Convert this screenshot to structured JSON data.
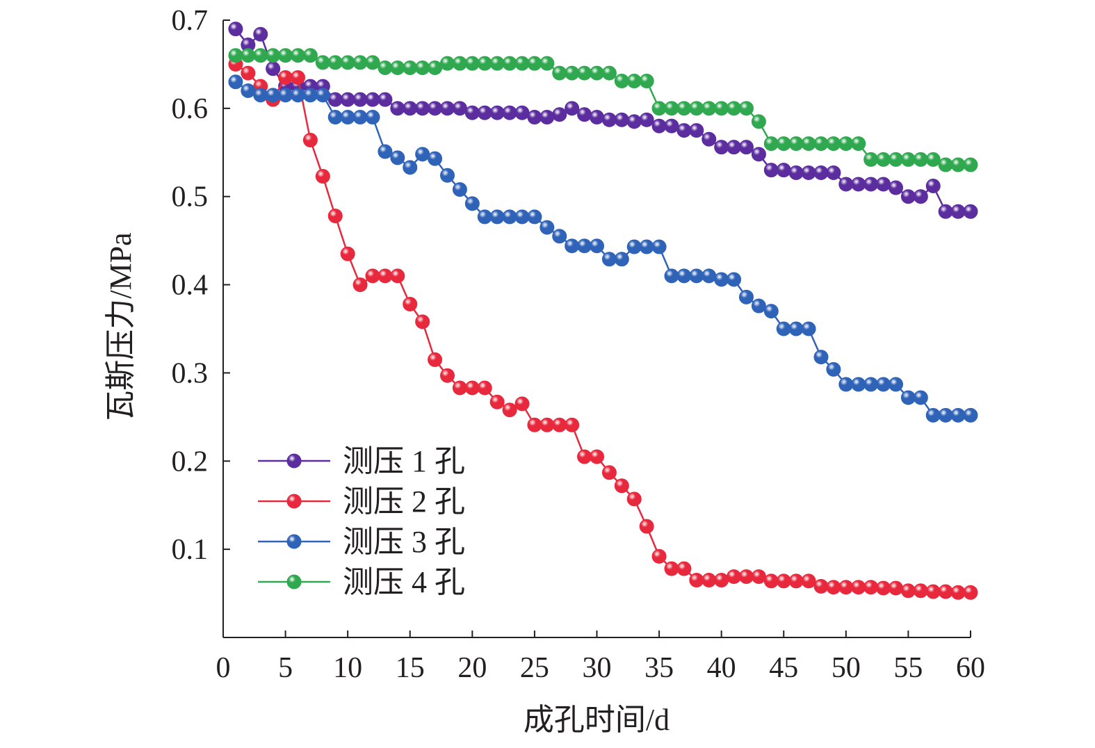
{
  "chart_data": {
    "type": "line",
    "xlabel": "成孔时间/d",
    "ylabel": "瓦斯压力/MPa",
    "xlim": [
      0,
      60
    ],
    "ylim": [
      0,
      0.7
    ],
    "x_ticks": [
      "0",
      "5",
      "10",
      "15",
      "20",
      "25",
      "30",
      "35",
      "40",
      "45",
      "50",
      "55",
      "60"
    ],
    "y_ticks": [
      "0.1",
      "0.2",
      "0.3",
      "0.4",
      "0.5",
      "0.6",
      "0.7"
    ],
    "grid": false,
    "legend_position": "lower-left",
    "x": [
      1,
      2,
      3,
      4,
      5,
      6,
      7,
      8,
      9,
      10,
      11,
      12,
      13,
      14,
      15,
      16,
      17,
      18,
      19,
      20,
      21,
      22,
      23,
      24,
      25,
      26,
      27,
      28,
      29,
      30,
      31,
      32,
      33,
      34,
      35,
      36,
      37,
      38,
      39,
      40,
      41,
      42,
      43,
      44,
      45,
      46,
      47,
      48,
      49,
      50,
      51,
      52,
      53,
      54,
      55,
      56,
      57,
      58,
      59,
      60
    ],
    "series": [
      {
        "name": "测压 1 孔",
        "color": "#5b2d9e",
        "values": [
          0.69,
          0.672,
          0.684,
          0.645,
          0.625,
          0.625,
          0.625,
          0.625,
          0.61,
          0.61,
          0.61,
          0.61,
          0.61,
          0.6,
          0.6,
          0.6,
          0.6,
          0.6,
          0.6,
          0.595,
          0.595,
          0.595,
          0.595,
          0.595,
          0.59,
          0.59,
          0.593,
          0.6,
          0.593,
          0.59,
          0.587,
          0.587,
          0.585,
          0.587,
          0.58,
          0.58,
          0.575,
          0.575,
          0.565,
          0.556,
          0.556,
          0.556,
          0.548,
          0.53,
          0.53,
          0.527,
          0.527,
          0.527,
          0.527,
          0.514,
          0.514,
          0.514,
          0.514,
          0.51,
          0.5,
          0.5,
          0.512,
          0.483,
          0.483,
          0.483
        ]
      },
      {
        "name": "测压 2 孔",
        "color": "#e8283c",
        "values": [
          0.65,
          0.64,
          0.625,
          0.61,
          0.635,
          0.635,
          0.564,
          0.523,
          0.478,
          0.435,
          0.4,
          0.41,
          0.41,
          0.41,
          0.378,
          0.358,
          0.315,
          0.297,
          0.283,
          0.283,
          0.283,
          0.267,
          0.258,
          0.265,
          0.241,
          0.241,
          0.241,
          0.241,
          0.205,
          0.205,
          0.187,
          0.172,
          0.157,
          0.126,
          0.092,
          0.078,
          0.078,
          0.065,
          0.065,
          0.065,
          0.069,
          0.069,
          0.069,
          0.064,
          0.064,
          0.064,
          0.064,
          0.058,
          0.057,
          0.057,
          0.057,
          0.057,
          0.056,
          0.056,
          0.053,
          0.053,
          0.052,
          0.052,
          0.051,
          0.051
        ]
      },
      {
        "name": "测压 3 孔",
        "color": "#2f63b8",
        "values": [
          0.63,
          0.62,
          0.615,
          0.615,
          0.615,
          0.615,
          0.615,
          0.615,
          0.59,
          0.59,
          0.59,
          0.59,
          0.551,
          0.544,
          0.533,
          0.548,
          0.543,
          0.524,
          0.508,
          0.492,
          0.477,
          0.477,
          0.477,
          0.477,
          0.477,
          0.465,
          0.455,
          0.444,
          0.444,
          0.444,
          0.429,
          0.429,
          0.443,
          0.443,
          0.443,
          0.41,
          0.41,
          0.41,
          0.41,
          0.406,
          0.406,
          0.386,
          0.376,
          0.37,
          0.35,
          0.35,
          0.35,
          0.318,
          0.304,
          0.287,
          0.287,
          0.287,
          0.287,
          0.287,
          0.272,
          0.272,
          0.252,
          0.252,
          0.252,
          0.252
        ]
      },
      {
        "name": "测压 4 孔",
        "color": "#2fa84f",
        "values": [
          0.66,
          0.66,
          0.66,
          0.66,
          0.66,
          0.66,
          0.66,
          0.652,
          0.652,
          0.652,
          0.652,
          0.652,
          0.646,
          0.646,
          0.646,
          0.646,
          0.646,
          0.651,
          0.651,
          0.651,
          0.651,
          0.651,
          0.651,
          0.651,
          0.651,
          0.651,
          0.64,
          0.64,
          0.64,
          0.64,
          0.64,
          0.631,
          0.631,
          0.631,
          0.6,
          0.6,
          0.6,
          0.6,
          0.6,
          0.6,
          0.6,
          0.6,
          0.585,
          0.56,
          0.56,
          0.56,
          0.56,
          0.56,
          0.56,
          0.56,
          0.56,
          0.542,
          0.542,
          0.542,
          0.542,
          0.542,
          0.542,
          0.536,
          0.536,
          0.536
        ]
      }
    ]
  }
}
